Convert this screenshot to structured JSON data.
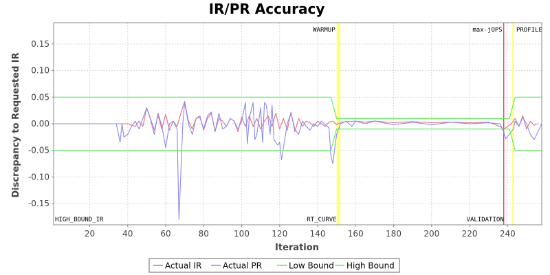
{
  "chart_data": {
    "type": "line",
    "title": "IR/PR Accuracy",
    "xlabel": "Iteration",
    "ylabel": "Discrepancy to Requested IR",
    "xlim": [
      1,
      258
    ],
    "ylim": [
      -0.19,
      0.19
    ],
    "x_ticks": [
      20,
      40,
      60,
      80,
      100,
      120,
      140,
      160,
      180,
      200,
      220,
      240
    ],
    "y_ticks": [
      -0.15,
      -0.1,
      -0.05,
      0.0,
      0.05,
      0.1,
      0.15
    ],
    "y_tick_labels": [
      "-0.15",
      "-0.10",
      "-0.05",
      "0.00",
      "0.05",
      "0.10",
      "0.15"
    ],
    "grid": true,
    "legend_position": "bottom-center",
    "series": [
      {
        "name": "Actual IR",
        "color": "#e0708a",
        "points": [
          [
            1,
            0
          ],
          [
            35,
            0
          ],
          [
            40,
            0
          ],
          [
            44,
            -0.005
          ],
          [
            46,
            0.005
          ],
          [
            48,
            -0.005
          ],
          [
            50,
            0.03
          ],
          [
            52,
            0.01
          ],
          [
            54,
            -0.012
          ],
          [
            56,
            0.015
          ],
          [
            58,
            -0.01
          ],
          [
            60,
            0.018
          ],
          [
            62,
            -0.012
          ],
          [
            64,
            0.005
          ],
          [
            66,
            -0.005
          ],
          [
            68,
            0.02
          ],
          [
            70,
            0.042
          ],
          [
            72,
            0.005
          ],
          [
            74,
            -0.01
          ],
          [
            76,
            0.01
          ],
          [
            78,
            0.015
          ],
          [
            80,
            -0.012
          ],
          [
            82,
            0.01
          ],
          [
            84,
            0.02
          ],
          [
            86,
            -0.015
          ],
          [
            88,
            0.01
          ],
          [
            90,
            0.005
          ],
          [
            92,
            -0.005
          ],
          [
            94,
            0.01
          ],
          [
            96,
            0.005
          ],
          [
            98,
            -0.015
          ],
          [
            100,
            0.012
          ],
          [
            102,
            -0.005
          ],
          [
            104,
            0.015
          ],
          [
            106,
            -0.005
          ],
          [
            108,
            0.01
          ],
          [
            110,
            -0.01
          ],
          [
            112,
            0.005
          ],
          [
            114,
            0.015
          ],
          [
            116,
            -0.005
          ],
          [
            118,
            0.02
          ],
          [
            120,
            -0.01
          ],
          [
            122,
            0.01
          ],
          [
            124,
            -0.012
          ],
          [
            126,
            0.022
          ],
          [
            128,
            -0.015
          ],
          [
            130,
            0.01
          ],
          [
            132,
            -0.005
          ],
          [
            134,
            0.005
          ],
          [
            136,
            0.002
          ],
          [
            138,
            -0.005
          ],
          [
            140,
            0.005
          ],
          [
            142,
            0
          ],
          [
            144,
            -0.005
          ],
          [
            146,
            0.003
          ],
          [
            148,
            0.005
          ],
          [
            150,
            -0.002
          ],
          [
            152,
            0.003
          ],
          [
            160,
            0.005
          ],
          [
            165,
            0.003
          ],
          [
            170,
            0.005
          ],
          [
            180,
            0.002
          ],
          [
            190,
            0.004
          ],
          [
            200,
            0.002
          ],
          [
            210,
            0.003
          ],
          [
            220,
            0.002
          ],
          [
            230,
            0.003
          ],
          [
            236,
            -0.005
          ],
          [
            238,
            -0.01
          ],
          [
            240,
            -0.005
          ],
          [
            242,
            0
          ],
          [
            244,
            0.01
          ],
          [
            246,
            -0.005
          ],
          [
            248,
            0.015
          ],
          [
            250,
            -0.01
          ],
          [
            252,
            0.005
          ],
          [
            254,
            -0.003
          ],
          [
            256,
            0
          ]
        ]
      },
      {
        "name": "Actual PR",
        "color": "#8a8af0",
        "points": [
          [
            1,
            0
          ],
          [
            34,
            0
          ],
          [
            36,
            -0.035
          ],
          [
            37,
            0.0
          ],
          [
            38,
            -0.025
          ],
          [
            40,
            -0.02
          ],
          [
            42,
            -0.005
          ],
          [
            44,
            0.005
          ],
          [
            46,
            -0.01
          ],
          [
            48,
            0.01
          ],
          [
            50,
            0.03
          ],
          [
            52,
            0.008
          ],
          [
            54,
            -0.02
          ],
          [
            56,
            0.02
          ],
          [
            58,
            -0.005
          ],
          [
            60,
            -0.045
          ],
          [
            62,
            0.0
          ],
          [
            64,
            0.005
          ],
          [
            66,
            -0.01
          ],
          [
            67,
            -0.18
          ],
          [
            69,
            0.0
          ],
          [
            70,
            0.04
          ],
          [
            72,
            0.0
          ],
          [
            74,
            -0.02
          ],
          [
            76,
            0.01
          ],
          [
            78,
            0.012
          ],
          [
            80,
            -0.01
          ],
          [
            82,
            0.015
          ],
          [
            84,
            0.022
          ],
          [
            86,
            -0.015
          ],
          [
            88,
            0.02
          ],
          [
            90,
            -0.01
          ],
          [
            92,
            -0.005
          ],
          [
            94,
            0.01
          ],
          [
            96,
            0.005
          ],
          [
            98,
            -0.01
          ],
          [
            100,
            0.005
          ],
          [
            102,
            0.04
          ],
          [
            103,
            -0.038
          ],
          [
            104,
            0.01
          ],
          [
            106,
            0.04
          ],
          [
            107,
            -0.03
          ],
          [
            108,
            -0.02
          ],
          [
            110,
            0.03
          ],
          [
            111,
            -0.035
          ],
          [
            112,
            0.04
          ],
          [
            113,
            0.035
          ],
          [
            115,
            -0.02
          ],
          [
            116,
            0.035
          ],
          [
            117,
            -0.03
          ],
          [
            119,
            -0.04
          ],
          [
            120,
            -0.035
          ],
          [
            121,
            -0.068
          ],
          [
            122,
            -0.045
          ],
          [
            124,
            0.0
          ],
          [
            126,
            0.02
          ],
          [
            128,
            -0.01
          ],
          [
            130,
            -0.02
          ],
          [
            132,
            0.005
          ],
          [
            134,
            -0.005
          ],
          [
            136,
            -0.012
          ],
          [
            138,
            0.0
          ],
          [
            140,
            -0.005
          ],
          [
            142,
            0.005
          ],
          [
            146,
            -0.008
          ],
          [
            147,
            -0.06
          ],
          [
            148,
            -0.075
          ],
          [
            150,
            -0.02
          ],
          [
            152,
            0.0
          ],
          [
            155,
            0.005
          ],
          [
            158,
            -0.005
          ],
          [
            160,
            0.005
          ],
          [
            165,
            0.0
          ],
          [
            170,
            0.005
          ],
          [
            180,
            -0.002
          ],
          [
            190,
            0.003
          ],
          [
            200,
            -0.002
          ],
          [
            210,
            0.003
          ],
          [
            220,
            0.0
          ],
          [
            230,
            0.002
          ],
          [
            236,
            0.0
          ],
          [
            238,
            -0.015
          ],
          [
            239,
            -0.028
          ],
          [
            241,
            -0.02
          ],
          [
            243,
            -0.01
          ],
          [
            244,
            0.005
          ],
          [
            246,
            -0.005
          ],
          [
            248,
            0.012
          ],
          [
            250,
            0.0
          ],
          [
            252,
            -0.02
          ],
          [
            254,
            -0.03
          ],
          [
            256,
            -0.015
          ],
          [
            258,
            0
          ]
        ]
      },
      {
        "name": "Low Bound",
        "color": "#55ee55",
        "points": [
          [
            1,
            -0.05
          ],
          [
            147,
            -0.05
          ],
          [
            150,
            -0.01
          ],
          [
            238,
            -0.01
          ],
          [
            241,
            -0.01
          ],
          [
            244,
            -0.05
          ],
          [
            258,
            -0.05
          ]
        ]
      },
      {
        "name": "High Bound",
        "color": "#55ee55",
        "points": [
          [
            1,
            0.05
          ],
          [
            147,
            0.05
          ],
          [
            150,
            0.01
          ],
          [
            238,
            0.01
          ],
          [
            241,
            0.01
          ],
          [
            244,
            0.05
          ],
          [
            258,
            0.05
          ]
        ]
      }
    ],
    "markers": [
      {
        "x": 151,
        "color": "#ffff66",
        "width_data": 2,
        "top_label": "WARMUP",
        "bottom_label": "RT_CURVE",
        "label_side": "left"
      },
      {
        "x": 238,
        "color": "#ee2222",
        "width_data": 0,
        "top_label": "max-jOPS",
        "bottom_label": "VALIDATION",
        "label_side": "left"
      },
      {
        "x": 243,
        "color": "#ffff66",
        "width_data": 1,
        "top_label": "PROFILE",
        "bottom_label": "",
        "label_side": "right"
      }
    ],
    "corner_labels": {
      "bottom_left": "HIGH_BOUND_IR"
    }
  }
}
